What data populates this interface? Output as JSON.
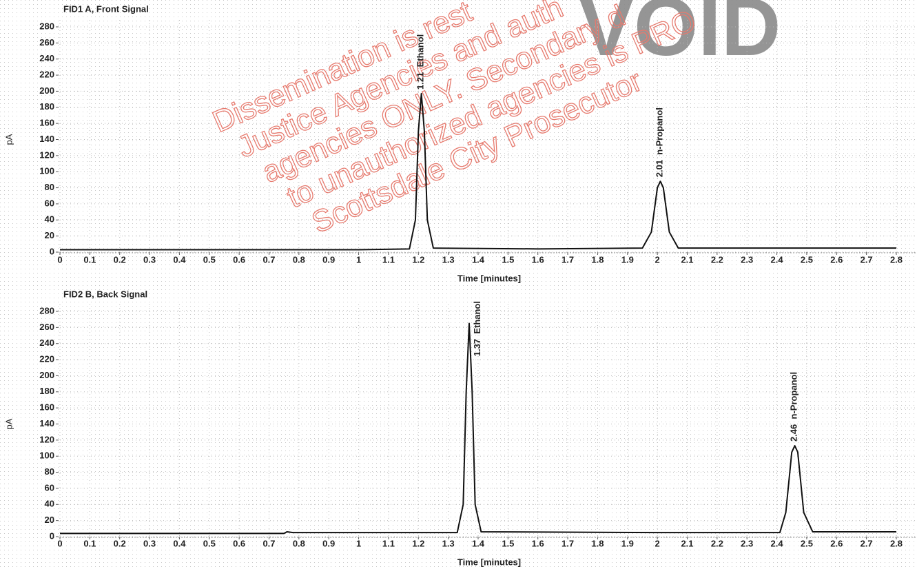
{
  "chart_data": [
    {
      "type": "line",
      "title": "FID1 A, Front Signal",
      "ylabel": "pA",
      "xlabel": "Time [minutes]",
      "x": [
        0,
        1.0,
        1.17,
        1.19,
        1.2,
        1.21,
        1.22,
        1.23,
        1.25,
        1.6,
        1.95,
        1.98,
        2.0,
        2.01,
        2.02,
        2.04,
        2.07,
        2.8
      ],
      "series": [
        {
          "color": "#111111",
          "values": [
            3,
            3,
            4,
            40,
            150,
            197,
            150,
            40,
            5,
            4,
            5,
            25,
            80,
            88,
            80,
            25,
            5,
            5
          ]
        }
      ],
      "xlim": [
        0,
        2.8
      ],
      "ylim": [
        0,
        280
      ],
      "xticks": [
        0,
        0.1,
        0.2,
        0.3,
        0.4,
        0.5,
        0.6,
        0.7,
        0.8,
        0.9,
        1,
        1.1,
        1.2,
        1.3,
        1.4,
        1.5,
        1.6,
        1.7,
        1.8,
        1.9,
        2,
        2.1,
        2.2,
        2.3,
        2.4,
        2.5,
        2.6,
        2.7,
        2.8
      ],
      "yticks": [
        0,
        20,
        40,
        60,
        80,
        100,
        120,
        140,
        160,
        180,
        200,
        220,
        240,
        260,
        280
      ],
      "grid": true,
      "peaks": [
        {
          "time": 1.21,
          "name": "Ethanol"
        },
        {
          "time": 2.01,
          "name": "n-Propanol"
        }
      ]
    },
    {
      "type": "line",
      "title": "FID2 B, Back Signal",
      "ylabel": "pA",
      "xlabel": "Time [minutes]",
      "x": [
        0,
        0.75,
        0.76,
        0.78,
        1.33,
        1.35,
        1.36,
        1.37,
        1.38,
        1.39,
        1.41,
        2.0,
        2.41,
        2.43,
        2.45,
        2.46,
        2.47,
        2.49,
        2.52,
        2.8
      ],
      "series": [
        {
          "color": "#111111",
          "values": [
            4,
            4,
            6,
            5,
            5,
            40,
            180,
            265,
            180,
            40,
            6,
            5,
            5,
            30,
            105,
            113,
            105,
            30,
            6,
            6
          ]
        }
      ],
      "xlim": [
        0,
        2.8
      ],
      "ylim": [
        0,
        280
      ],
      "xticks": [
        0,
        0.1,
        0.2,
        0.3,
        0.4,
        0.5,
        0.6,
        0.7,
        0.8,
        0.9,
        1,
        1.1,
        1.2,
        1.3,
        1.4,
        1.5,
        1.6,
        1.7,
        1.8,
        1.9,
        2,
        2.1,
        2.2,
        2.3,
        2.4,
        2.5,
        2.6,
        2.7,
        2.8
      ],
      "yticks": [
        0,
        20,
        40,
        60,
        80,
        100,
        120,
        140,
        160,
        180,
        200,
        220,
        240,
        260,
        280
      ],
      "grid": true,
      "peaks": [
        {
          "time": 1.37,
          "name": "Ethanol"
        },
        {
          "time": 2.46,
          "name": "n-Propanol"
        }
      ]
    }
  ],
  "watermark": {
    "lines": [
      "Dissemination is rest",
      "Justice Agencies and auth",
      "agencies ONLY. Secondary d",
      "to unauthorized agencies is PRO",
      "Scottsdale City Prosecutor"
    ],
    "stamp": "VOID"
  }
}
